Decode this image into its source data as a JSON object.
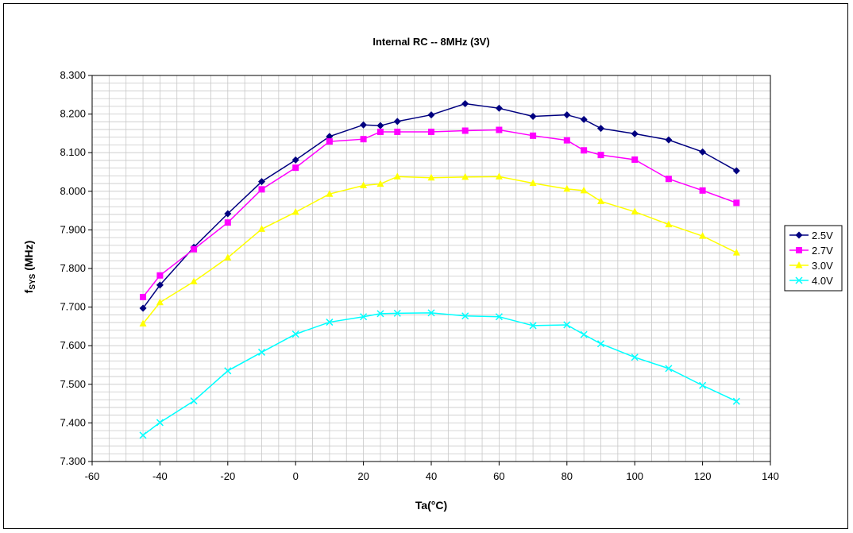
{
  "chart_data": {
    "type": "line",
    "title": "Internal RC -- 8MHz (3V)",
    "xlabel": "Ta(°C)",
    "ylabel_main": "f",
    "ylabel_sub": "SYS",
    "ylabel_unit": " (MHz)",
    "xlim": [
      -60,
      140
    ],
    "ylim": [
      7.3,
      8.3
    ],
    "xticks": [
      -60,
      -40,
      -20,
      0,
      20,
      40,
      60,
      80,
      100,
      120,
      140
    ],
    "yticks": [
      "7.300",
      "7.400",
      "7.500",
      "7.600",
      "7.700",
      "7.800",
      "7.900",
      "8.000",
      "8.100",
      "8.200",
      "8.300"
    ],
    "grid": true,
    "legend_position": "right",
    "series": [
      {
        "name": "2.5V",
        "color": "#000080",
        "marker": "diamond",
        "x": [
          -45,
          -40,
          -30,
          -20,
          -10,
          0,
          10,
          20,
          25,
          30,
          40,
          50,
          60,
          70,
          80,
          85,
          90,
          100,
          110,
          120,
          130
        ],
        "y": [
          7.697,
          7.757,
          7.855,
          7.942,
          8.025,
          8.081,
          8.142,
          8.172,
          8.17,
          8.181,
          8.198,
          8.227,
          8.215,
          8.194,
          8.198,
          8.186,
          8.163,
          8.149,
          8.133,
          8.102,
          8.053
        ]
      },
      {
        "name": "2.7V",
        "color": "#FF00FF",
        "marker": "square",
        "x": [
          -45,
          -40,
          -30,
          -20,
          -10,
          0,
          10,
          20,
          25,
          30,
          40,
          50,
          60,
          70,
          80,
          85,
          90,
          100,
          110,
          120,
          130
        ],
        "y": [
          7.726,
          7.782,
          7.85,
          7.919,
          8.005,
          8.061,
          8.129,
          8.135,
          8.154,
          8.154,
          8.154,
          8.157,
          8.159,
          8.144,
          8.132,
          8.106,
          8.094,
          8.082,
          8.032,
          8.002,
          7.97
        ]
      },
      {
        "name": "3.0V",
        "color": "#FFFF00",
        "marker": "triangle",
        "x": [
          -45,
          -40,
          -30,
          -20,
          -10,
          0,
          10,
          20,
          25,
          30,
          40,
          50,
          60,
          70,
          80,
          85,
          90,
          100,
          110,
          120,
          130
        ],
        "y": [
          7.657,
          7.712,
          7.766,
          7.828,
          7.902,
          7.946,
          7.993,
          8.015,
          8.019,
          8.038,
          8.035,
          8.037,
          8.038,
          8.021,
          8.006,
          8.002,
          7.974,
          7.947,
          7.914,
          7.884,
          7.841
        ]
      },
      {
        "name": "4.0V",
        "color": "#00FFFF",
        "marker": "x",
        "x": [
          -45,
          -40,
          -30,
          -20,
          -10,
          0,
          10,
          20,
          25,
          30,
          40,
          50,
          60,
          70,
          80,
          85,
          90,
          100,
          110,
          120,
          130
        ],
        "y": [
          7.368,
          7.401,
          7.457,
          7.535,
          7.583,
          7.63,
          7.661,
          7.675,
          7.683,
          7.684,
          7.685,
          7.677,
          7.675,
          7.652,
          7.654,
          7.629,
          7.605,
          7.57,
          7.541,
          7.497,
          7.456
        ]
      }
    ]
  }
}
